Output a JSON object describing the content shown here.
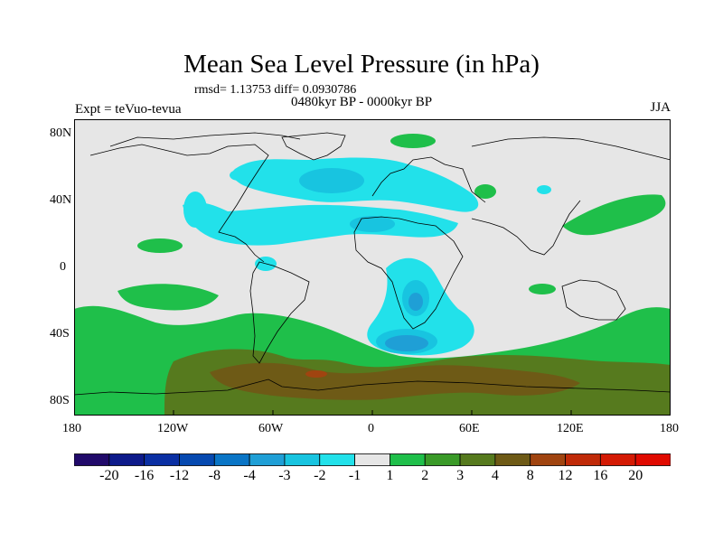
{
  "header": {
    "title": "Mean Sea Level Pressure (in hPa)",
    "stats": "rmsd= 1.13753  diff= 0.0930786",
    "period": "0480kyr BP - 0000kyr BP",
    "experiment": "Expt = teVuo-tevua",
    "season": "JJA"
  },
  "map": {
    "lon_range": [
      -180,
      180
    ],
    "lat_range": [
      -90,
      90
    ],
    "x_ticks": [
      "180",
      "120W",
      "60W",
      "0",
      "60E",
      "120E",
      "180"
    ],
    "y_ticks": [
      "80N",
      "40N",
      "0",
      "40S",
      "80S"
    ],
    "background_color": "#e6e6e6"
  },
  "colorbar": {
    "labels": [
      "-20",
      "-16",
      "-12",
      "-8",
      "-4",
      "-3",
      "-2",
      "-1",
      "1",
      "2",
      "3",
      "4",
      "8",
      "12",
      "16",
      "20"
    ],
    "colors": [
      "#210a6a",
      "#0d1a8a",
      "#0a2fa3",
      "#0649b0",
      "#0a75c6",
      "#1f9fd6",
      "#18c4e0",
      "#22e1ea",
      "#e6e6e6",
      "#1fbf4a",
      "#3a9a28",
      "#567a1e",
      "#6e5a16",
      "#a04410",
      "#c02a08",
      "#d41a04",
      "#e00a00"
    ]
  }
}
